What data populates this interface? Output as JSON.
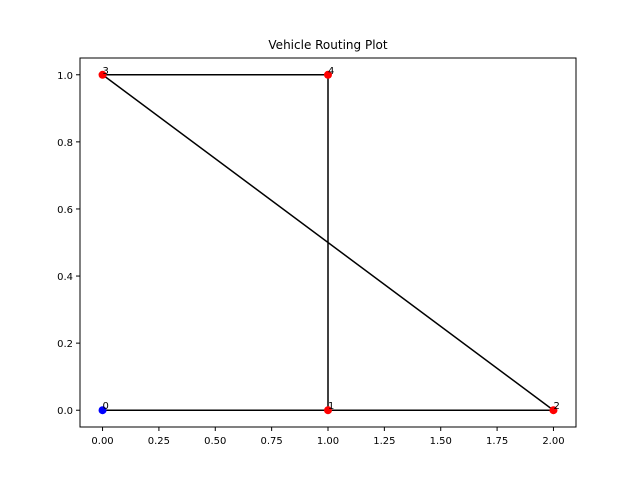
{
  "chart_data": {
    "type": "scatter",
    "title": "Vehicle Routing Plot",
    "xlabel": "",
    "ylabel": "",
    "xlim": [
      -0.1,
      2.1
    ],
    "ylim": [
      -0.05,
      1.05
    ],
    "xticks": [
      0.0,
      0.25,
      0.5,
      0.75,
      1.0,
      1.25,
      1.5,
      1.75,
      2.0
    ],
    "xtick_labels": [
      "0.00",
      "0.25",
      "0.50",
      "0.75",
      "1.00",
      "1.25",
      "1.50",
      "1.75",
      "2.00"
    ],
    "yticks": [
      0.0,
      0.2,
      0.4,
      0.6,
      0.8,
      1.0
    ],
    "ytick_labels": [
      "0.0",
      "0.2",
      "0.4",
      "0.6",
      "0.8",
      "1.0"
    ],
    "grid": false,
    "nodes": [
      {
        "id": "0",
        "x": 0,
        "y": 0,
        "color": "#0000ff",
        "role": "depot"
      },
      {
        "id": "1",
        "x": 1,
        "y": 0,
        "color": "#ff0000"
      },
      {
        "id": "2",
        "x": 2,
        "y": 0,
        "color": "#ff0000"
      },
      {
        "id": "3",
        "x": 0,
        "y": 1,
        "color": "#ff0000"
      },
      {
        "id": "4",
        "x": 1,
        "y": 1,
        "color": "#ff0000"
      }
    ],
    "route": [
      [
        0,
        0
      ],
      [
        1,
        0
      ],
      [
        1,
        1
      ],
      [
        0,
        1
      ],
      [
        2,
        0
      ],
      [
        1,
        0
      ]
    ],
    "route_color": "#000000"
  }
}
